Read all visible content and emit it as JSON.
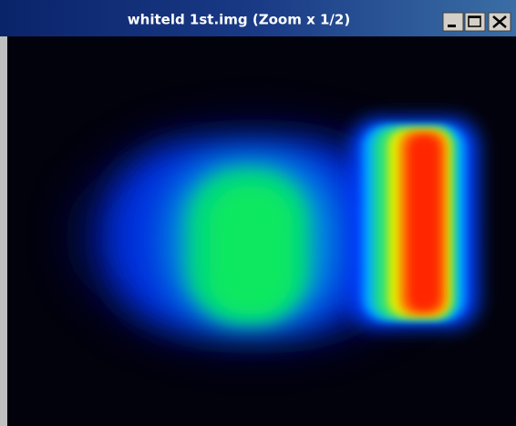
{
  "window": {
    "title": "whiteld 1st.img (Zoom x 1/2)"
  }
}
